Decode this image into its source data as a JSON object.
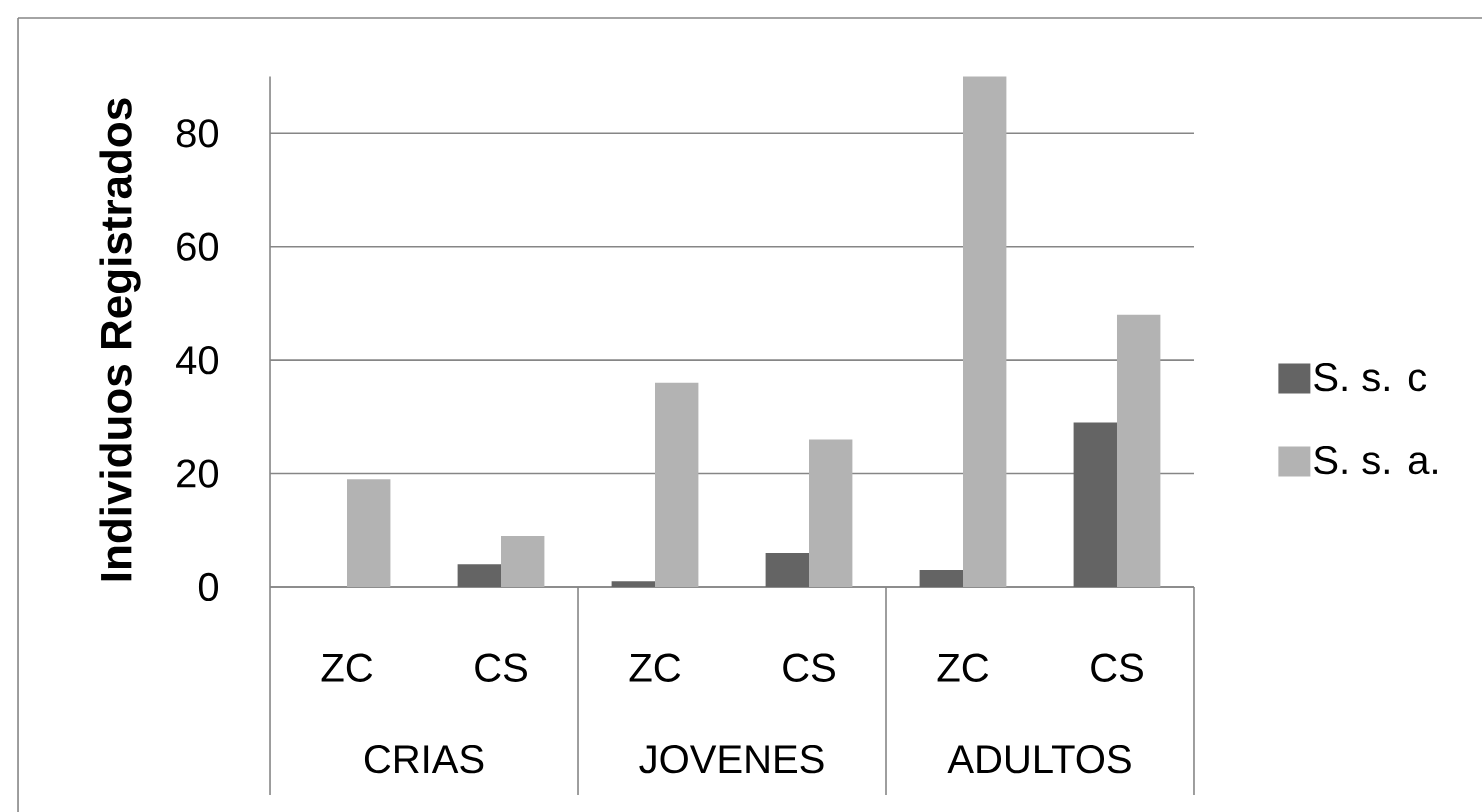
{
  "chart_data": {
    "type": "bar",
    "ylabel": "Individuos Registrados",
    "categories": [
      "ZC",
      "CS",
      "ZC",
      "CS",
      "ZC",
      "CS"
    ],
    "annotations": [
      "CRIAS",
      "JOVENES",
      "ADULTOS"
    ],
    "series": [
      {
        "name": "S. s. c",
        "color": "#646464",
        "values": [
          0,
          4,
          1,
          6,
          3,
          29
        ]
      },
      {
        "name": "S. s. a.",
        "color": "#b3b3b3",
        "values": [
          19,
          9,
          36,
          26,
          90,
          48
        ]
      }
    ],
    "ylim": [
      0,
      90
    ],
    "yticks": [
      0,
      20,
      40,
      60,
      80
    ],
    "grid": "y",
    "legend": "right"
  }
}
